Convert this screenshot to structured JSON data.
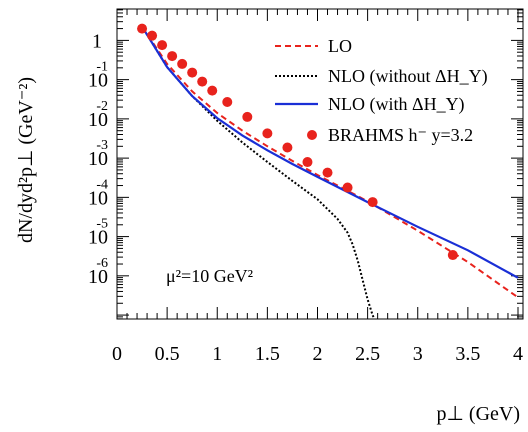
{
  "chart_data": {
    "type": "line",
    "xlabel": "p⊥ (GeV)",
    "ylabel": "dN/dyd²p⊥ (GeV⁻²)",
    "xlim": [
      0,
      4.05
    ],
    "ylim_log10": [
      -7.1,
      0.8
    ],
    "y_scale": "log",
    "grid": false,
    "x_ticks": [
      {
        "v": 0,
        "label": "0"
      },
      {
        "v": 0.5,
        "label": "0.5"
      },
      {
        "v": 1,
        "label": "1"
      },
      {
        "v": 1.5,
        "label": "1.5"
      },
      {
        "v": 2,
        "label": "2"
      },
      {
        "v": 2.5,
        "label": "2.5"
      },
      {
        "v": 3,
        "label": "3"
      },
      {
        "v": 3.5,
        "label": "3.5"
      },
      {
        "v": 4,
        "label": "4"
      }
    ],
    "y_ticks": [
      {
        "v": 0,
        "base": "1",
        "exp": ""
      },
      {
        "v": -1,
        "base": "10",
        "exp": "-1"
      },
      {
        "v": -2,
        "base": "10",
        "exp": "-2"
      },
      {
        "v": -3,
        "base": "10",
        "exp": "-3"
      },
      {
        "v": -4,
        "base": "10",
        "exp": "-4"
      },
      {
        "v": -5,
        "base": "10",
        "exp": "-5"
      },
      {
        "v": -6,
        "base": "10",
        "exp": "-6"
      }
    ],
    "annotation": {
      "text": "μ²=10 GeV²"
    },
    "legend_position": "top-right",
    "series": [
      {
        "name": "LO",
        "style": "dashed",
        "color": "#e8231d",
        "x": [
          0.25,
          0.5,
          0.75,
          1.0,
          1.25,
          1.5,
          1.75,
          2.0,
          2.5,
          3.0,
          3.5,
          4.0
        ],
        "log10_y": [
          0.35,
          -0.6,
          -1.3,
          -1.85,
          -2.3,
          -2.7,
          -3.07,
          -3.43,
          -4.1,
          -4.85,
          -5.65,
          -6.55
        ]
      },
      {
        "name": "NLO (without ΔH_Y)",
        "style": "dotted",
        "color": "#000000",
        "x": [
          0.25,
          0.5,
          0.75,
          1.0,
          1.25,
          1.5,
          1.75,
          2.0,
          2.2,
          2.3,
          2.35,
          2.4,
          2.45,
          2.5,
          2.55,
          2.6
        ],
        "log10_y": [
          0.35,
          -0.68,
          -1.42,
          -2.05,
          -2.6,
          -3.1,
          -3.58,
          -4.05,
          -4.55,
          -4.9,
          -5.2,
          -5.6,
          -6.1,
          -6.6,
          -7.0,
          -7.3
        ]
      },
      {
        "name": "NLO (with ΔH_Y)",
        "style": "solid",
        "color": "#1a2fd6",
        "x": [
          0.25,
          0.5,
          0.75,
          1.0,
          1.25,
          1.5,
          1.75,
          2.0,
          2.5,
          3.0,
          3.5,
          4.0
        ],
        "log10_y": [
          0.35,
          -0.68,
          -1.42,
          -1.98,
          -2.42,
          -2.8,
          -3.15,
          -3.48,
          -4.12,
          -4.75,
          -5.35,
          -6.05
        ]
      },
      {
        "name": "BRAHMS h⁻ y=3.2",
        "style": "markers",
        "color": "#e8231d",
        "x": [
          0.25,
          0.35,
          0.45,
          0.55,
          0.65,
          0.75,
          0.85,
          0.95,
          1.1,
          1.3,
          1.5,
          1.7,
          1.9,
          2.1,
          2.3,
          2.55,
          3.35
        ],
        "log10_y": [
          0.3,
          0.12,
          -0.12,
          -0.4,
          -0.6,
          -0.82,
          -1.05,
          -1.28,
          -1.57,
          -1.95,
          -2.37,
          -2.73,
          -3.1,
          -3.37,
          -3.75,
          -4.12,
          -5.47
        ]
      }
    ]
  }
}
